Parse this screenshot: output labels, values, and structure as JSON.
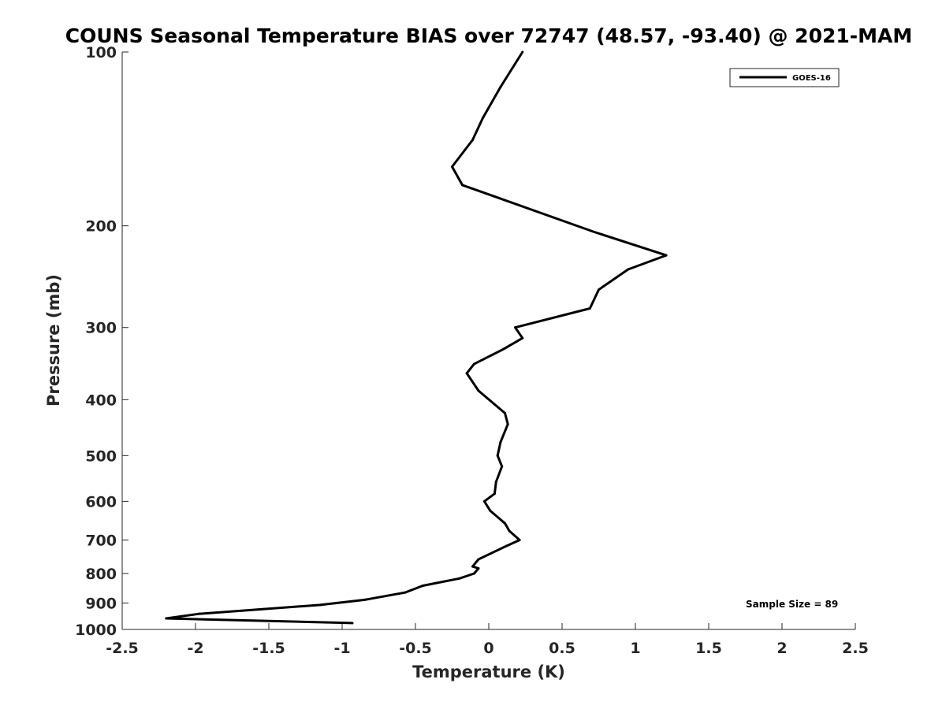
{
  "chart_data": {
    "type": "line",
    "title": "COUNS Seasonal Temperature BIAS over 72747 (48.57, -93.40) @ 2021-MAM",
    "xlabel": "Temperature (K)",
    "ylabel": "Pressure (mb)",
    "xlim": [
      -2.5,
      2.5
    ],
    "ylim": [
      100,
      1000
    ],
    "y_scale": "log",
    "y_reversed": true,
    "x_ticks": [
      "-2.5",
      "-2",
      "-1.5",
      "-1",
      "-0.5",
      "0",
      "0.5",
      "1",
      "1.5",
      "2",
      "2.5"
    ],
    "y_ticks": [
      "100",
      "200",
      "300",
      "400",
      "500",
      "600",
      "700",
      "800",
      "900",
      "1000"
    ],
    "grid": false,
    "legend_position": "top-right",
    "annotation": "Sample Size = 89",
    "series": [
      {
        "name": "GOES-16",
        "color": "#000000",
        "x": [
          0.23,
          0.08,
          -0.04,
          -0.11,
          -0.25,
          -0.18,
          0.72,
          1.21,
          0.95,
          0.75,
          0.69,
          0.18,
          0.23,
          0.1,
          -0.1,
          -0.15,
          -0.07,
          0.11,
          0.13,
          0.08,
          0.06,
          0.09,
          0.05,
          0.04,
          -0.03,
          0.01,
          0.11,
          0.14,
          0.21,
          0.12,
          -0.07,
          -0.11,
          -0.07,
          -0.1,
          -0.2,
          -0.45,
          -0.57,
          -0.84,
          -1.15,
          -1.98,
          -2.2,
          -0.93
        ],
        "y": [
          100,
          115,
          130,
          142,
          158,
          170,
          205,
          225,
          238,
          258,
          278,
          300,
          313,
          327,
          347,
          360,
          386,
          422,
          441,
          474,
          500,
          522,
          555,
          582,
          600,
          623,
          655,
          675,
          700,
          717,
          756,
          778,
          784,
          800,
          816,
          840,
          863,
          888,
          907,
          940,
          957,
          975
        ]
      }
    ]
  }
}
